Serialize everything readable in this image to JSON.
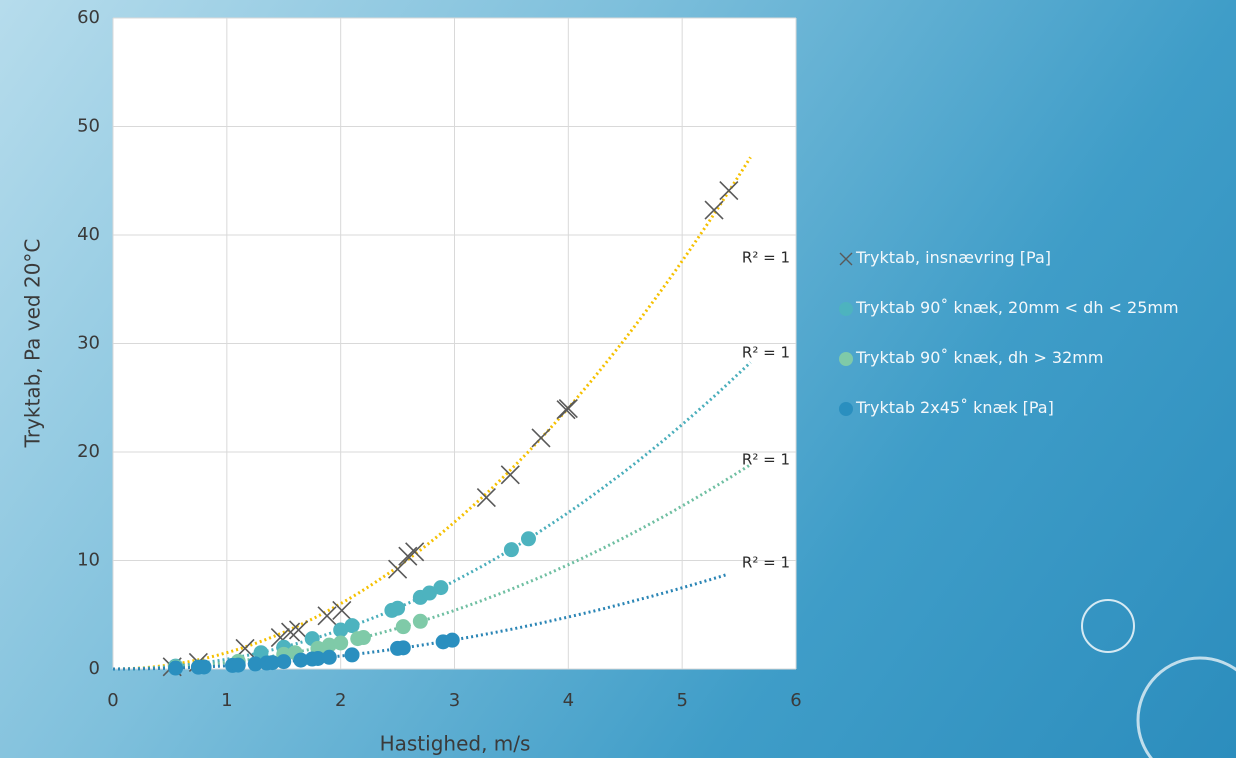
{
  "chart_data": {
    "type": "scatter",
    "x_label": "Hastighed, m/s",
    "y_label": "Tryktab, Pa ved 20°C",
    "xlim": [
      0,
      6
    ],
    "xticks": [
      0,
      1,
      2,
      3,
      4,
      5,
      6
    ],
    "ylim": [
      0,
      60
    ],
    "yticks": [
      0,
      10,
      20,
      30,
      40,
      50,
      60
    ],
    "grid": true,
    "legend": "right",
    "series": [
      {
        "name": "Tryktab, insnævring  [Pa]",
        "marker": "x",
        "color": "#595959",
        "trendline_color": "#f5c000",
        "trendline_to": 5.6,
        "trendline_label": "R² = 1",
        "x": [
          0.52,
          0.75,
          1.16,
          1.47,
          1.56,
          1.63,
          1.88,
          2.01,
          2.5,
          2.59,
          2.65,
          3.28,
          3.49,
          3.76,
          3.98,
          4.0,
          5.28,
          5.41
        ],
        "values": [
          0.2,
          0.6,
          1.9,
          2.9,
          3.4,
          3.6,
          4.9,
          5.4,
          9.2,
          10.4,
          10.8,
          15.8,
          17.9,
          21.3,
          23.9,
          24.0,
          42.3,
          44.1
        ]
      },
      {
        "name": "Tryktab 90˚ knæk, 20mm < dh < 25mm",
        "marker": "circle",
        "color": "#4db3bf",
        "trendline_color": "#4aaebb",
        "trendline_to": 5.6,
        "trendline_label": "R² = 1",
        "x": [
          0.55,
          1.3,
          1.5,
          1.75,
          2.0,
          2.1,
          2.45,
          2.5,
          2.7,
          2.78,
          2.88,
          3.5,
          3.65
        ],
        "values": [
          0.27,
          1.5,
          2.0,
          2.8,
          3.6,
          4.0,
          5.4,
          5.6,
          6.6,
          7.0,
          7.5,
          11.0,
          12.0
        ]
      },
      {
        "name": "Tryktab 90˚ knæk,  dh > 32mm",
        "marker": "circle",
        "color": "#7fcaa8",
        "trendline_color": "#6fbfa2",
        "trendline_to": 5.6,
        "trendline_label": "R² = 1",
        "x": [
          0.55,
          1.1,
          1.5,
          1.6,
          1.8,
          1.9,
          2.0,
          2.15,
          2.2,
          2.55,
          2.7
        ],
        "values": [
          0.18,
          0.7,
          1.35,
          1.5,
          1.9,
          2.2,
          2.4,
          2.8,
          2.9,
          3.9,
          4.4
        ]
      },
      {
        "name": "Tryktab 2x45˚ knæk [Pa]",
        "marker": "circle",
        "color": "#2a8fbf",
        "trendline_color": "#2a85b5",
        "trendline_to": 5.4,
        "trendline_label": "R² = 1",
        "x": [
          0.55,
          0.75,
          0.8,
          1.05,
          1.1,
          1.25,
          1.35,
          1.4,
          1.5,
          1.65,
          1.75,
          1.8,
          1.9,
          2.1,
          2.5,
          2.55,
          2.9,
          2.98
        ],
        "values": [
          0.09,
          0.17,
          0.19,
          0.33,
          0.36,
          0.47,
          0.55,
          0.59,
          0.68,
          0.82,
          0.92,
          0.97,
          1.08,
          1.3,
          1.9,
          1.95,
          2.5,
          2.66
        ]
      }
    ]
  }
}
